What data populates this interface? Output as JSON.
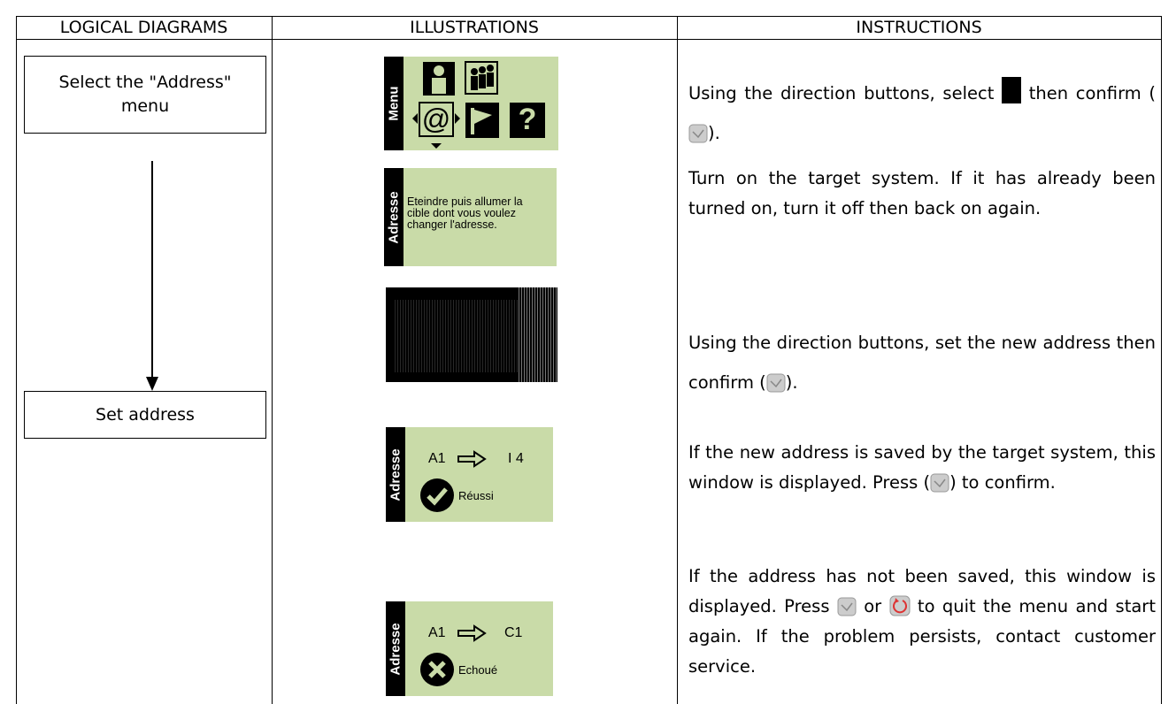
{
  "header": {
    "columns": [
      "LOGICAL DIAGRAMS",
      "ILLUSTRATIONS",
      "INSTRUCTIONS"
    ]
  },
  "diagram": {
    "steps": [
      "Select the \"Address\" menu",
      "Set address"
    ]
  },
  "illustrations": {
    "menu_screen": {
      "sidebar": "Menu",
      "icons": [
        "@",
        "?"
      ]
    },
    "power_screen": {
      "sidebar": "Adresse",
      "lines": [
        "Eteindre puis allumer la",
        "cible dont vous voulez",
        "changer l'adresse."
      ]
    },
    "success_screen": {
      "sidebar": "Adresse",
      "from": "A1",
      "to": "I 4",
      "status": "Réussi"
    },
    "failure_screen": {
      "sidebar": "Adresse",
      "from": "A1",
      "to": "C1",
      "status": "Echoué"
    }
  },
  "instructions": [
    [
      "Using the direction buttons, select ",
      "then confirm (",
      ")."
    ],
    [
      "Turn on the target system. If it has already been turned on, turn it off then back on again."
    ],
    [
      "Using the direction buttons, set the new address then confirm (",
      ")."
    ],
    [
      "If the new address is saved by the target system, this window is displayed. Press (",
      ") to confirm."
    ],
    [
      "If the address has not been saved, this window is displayed. Press ",
      " or ",
      " to quit the menu and start again. If the problem persists, contact customer service."
    ]
  ]
}
